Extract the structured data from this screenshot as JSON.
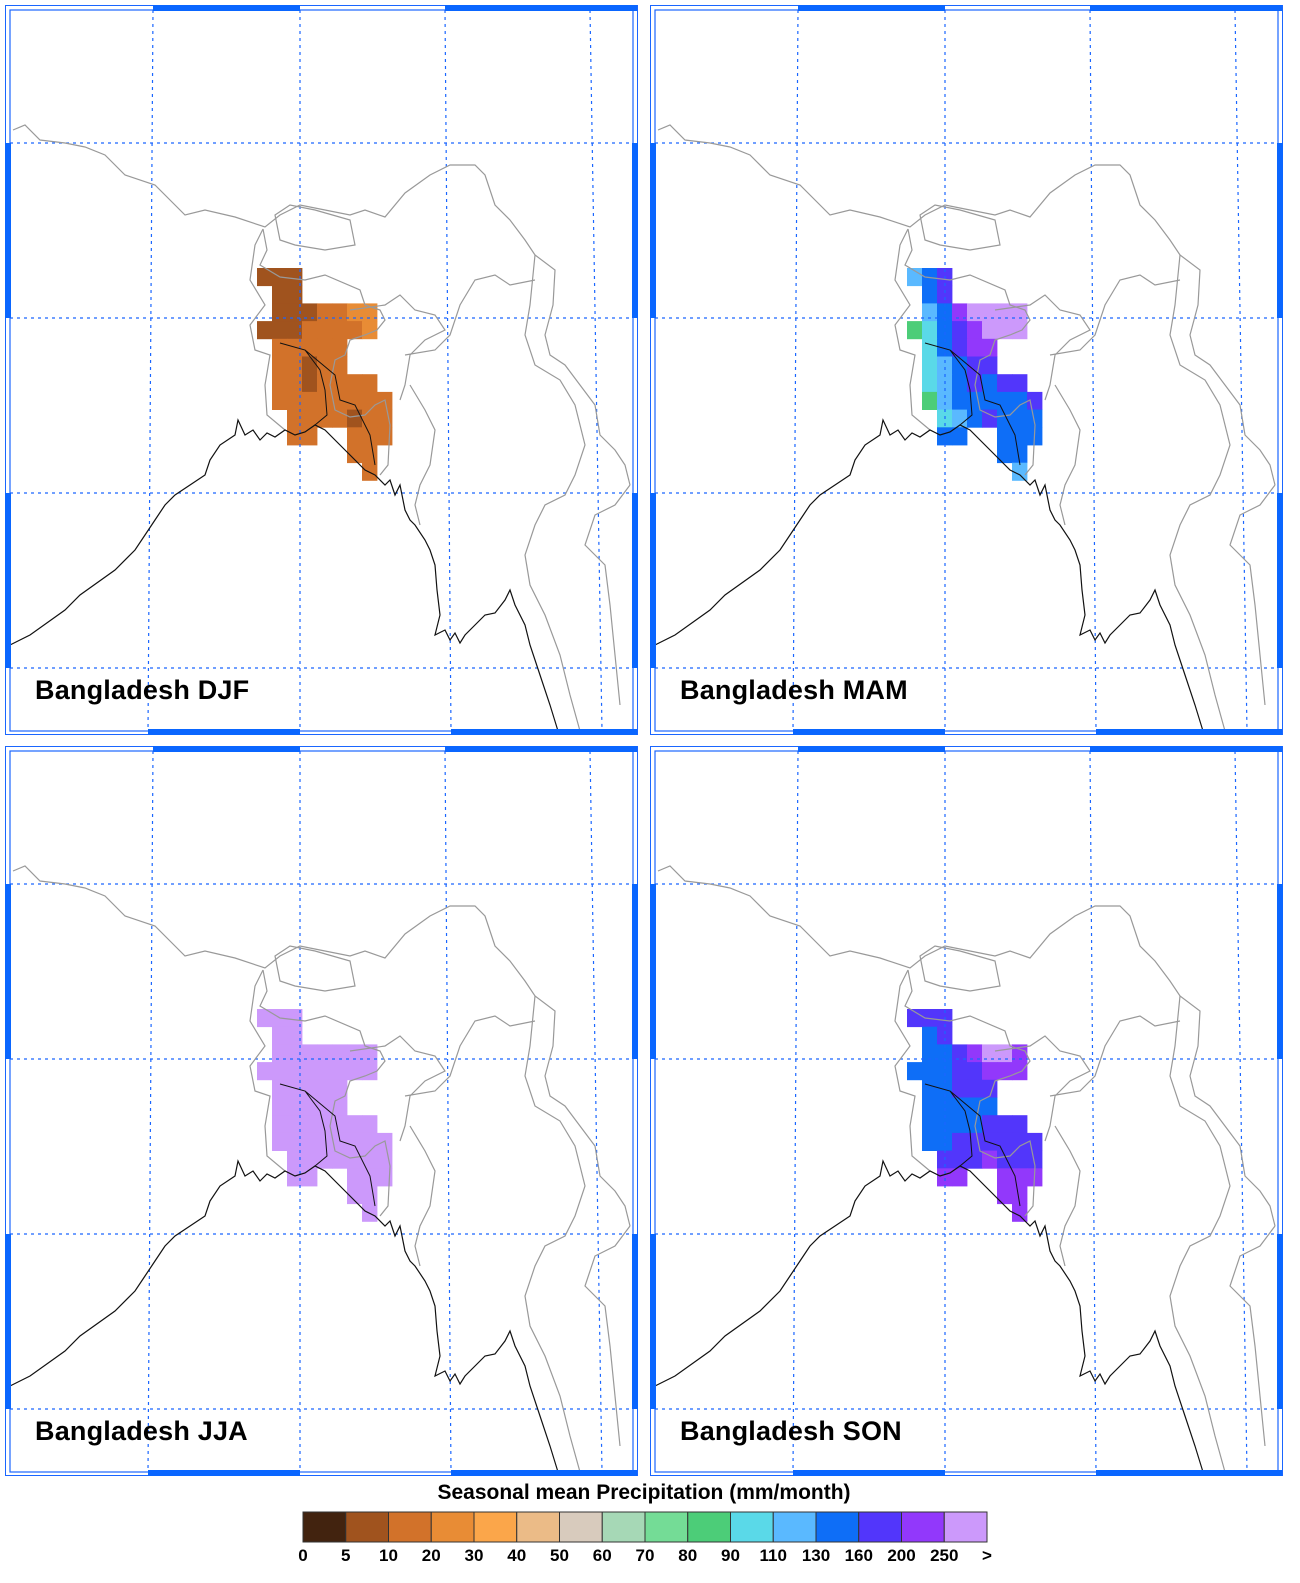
{
  "chart_data": {
    "type": "heatmap",
    "title": "Seasonal mean Precipitation (mm/month)",
    "colorbar": {
      "labels": [
        "0",
        "5",
        "10",
        "20",
        "30",
        "40",
        "50",
        "60",
        "70",
        "80",
        "90",
        "110",
        "130",
        "160",
        "200",
        "250",
        ">"
      ],
      "colors": [
        "#42230f",
        "#a0531e",
        "#d2722a",
        "#e88c35",
        "#fba64a",
        "#ebbb87",
        "#d8cbbd",
        "#a6d8b6",
        "#74dc96",
        "#4ccd78",
        "#5ad9e8",
        "#5ab9ff",
        "#0e6ef7",
        "#5236fb",
        "#9238fb",
        "#cc99fb"
      ]
    },
    "grid_legend": "each char = colorbar bin index in hex (0-f), '.' = no data",
    "panels": [
      {
        "title": "Bangladesh DJF",
        "grid": [
          "111......",
          ".11......",
          ".1112233.",
          "11122223.",
          ".22222...",
          ".22122...",
          ".2212222.",
          ".22222222",
          "..2222122",
          "..22..222",
          "......22.",
          ".......2."
        ]
      },
      {
        "title": "Bangladesh MAM",
        "grid": [
          "bcd......",
          ".cd......",
          ".bceffff.",
          "9acdefff.",
          ".acdee...",
          ".abcdd...",
          ".abcdcdd.",
          ".9bcccccd",
          "..abcdccc",
          "..cc..ccc",
          "......cc.",
          ".......b."
        ]
      },
      {
        "title": "Bangladesh JJA",
        "grid": [
          "fff......",
          ".ff......",
          ".fffffff.",
          "ffffffff.",
          ".fffff...",
          ".fffff...",
          ".fffffff.",
          ".ffffffff",
          "..fffffff",
          "..ff..fff",
          "......ff.",
          ".......f."
        ]
      },
      {
        "title": "Bangladesh SON",
        "grid": [
          "ddd......",
          ".cd......",
          ".ccdeffe.",
          "cccddeee.",
          ".ccddd...",
          ".ccccc...",
          ".ccccddd.",
          ".ccdddddd",
          "..dddeddd",
          "..ee..eee",
          "......ee.",
          ".......e."
        ]
      }
    ]
  }
}
